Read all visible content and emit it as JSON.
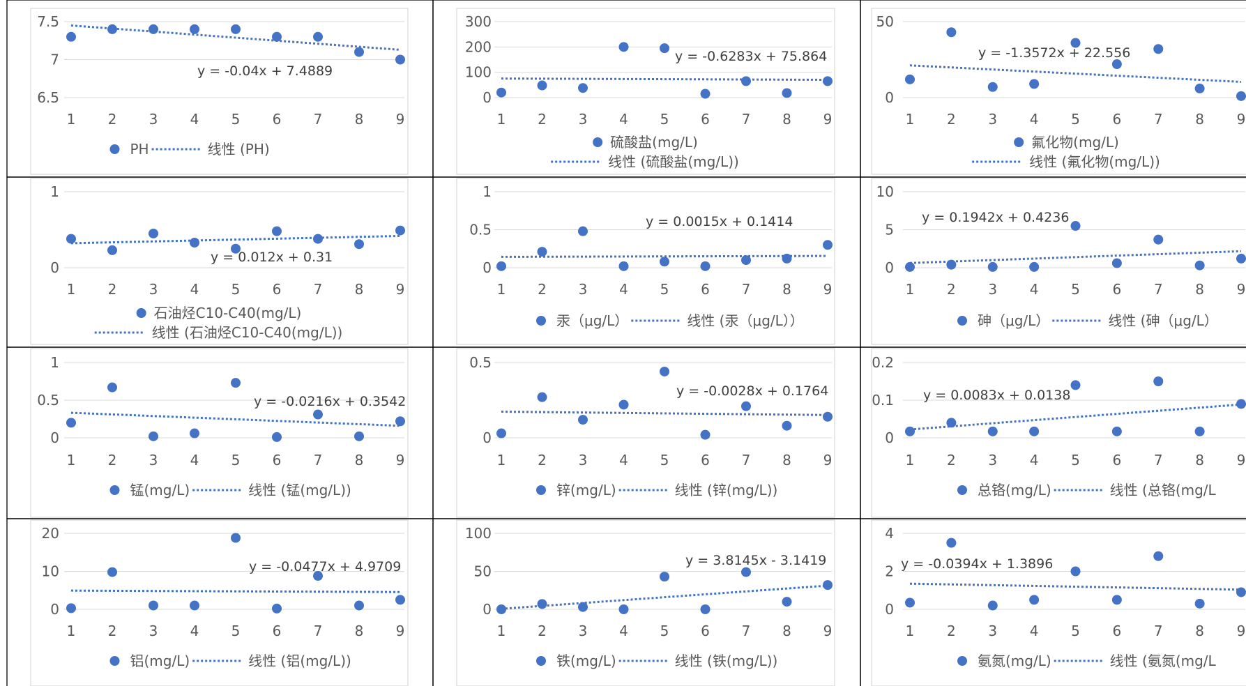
{
  "colors": {
    "series": "#4472C4",
    "grid": "#d9d9d9",
    "axis_text": "#595959",
    "cell_border": "#000000",
    "chart_border": "#d0d0d0"
  },
  "chart_data": [
    {
      "type": "scatter",
      "x": [
        1,
        2,
        3,
        4,
        5,
        6,
        7,
        8,
        9
      ],
      "y": [
        7.3,
        7.4,
        7.4,
        7.4,
        7.4,
        7.3,
        7.3,
        7.1,
        7.0
      ],
      "ylim": [
        6.5,
        7.5
      ],
      "yticks": [
        "6.5",
        "7",
        "7.5"
      ],
      "xticks": [
        "1",
        "2",
        "3",
        "4",
        "5",
        "6",
        "7",
        "8",
        "9"
      ],
      "trendline": {
        "slope": -0.04,
        "intercept": 7.4889,
        "label": "y = -0.04x + 7.4889"
      },
      "legend": {
        "series": "PH",
        "trend": "线性 (PH)",
        "layout": "inline"
      }
    },
    {
      "type": "scatter",
      "x": [
        1,
        2,
        3,
        4,
        5,
        6,
        7,
        8,
        9
      ],
      "y": [
        20,
        48,
        38,
        200,
        195,
        15,
        65,
        18,
        65
      ],
      "ylim": [
        0,
        300
      ],
      "yticks": [
        "0",
        "100",
        "200",
        "300"
      ],
      "xticks": [
        "1",
        "2",
        "3",
        "4",
        "5",
        "6",
        "7",
        "8",
        "9"
      ],
      "trendline": {
        "slope": -0.6283,
        "intercept": 75.864,
        "label": "y = -0.6283x + 75.864"
      },
      "legend": {
        "series": "硫酸盐(mg/L)",
        "trend": "线性 (硫酸盐(mg/L))",
        "layout": "stacked"
      }
    },
    {
      "type": "scatter",
      "x": [
        1,
        2,
        3,
        4,
        5,
        6,
        7,
        8,
        9
      ],
      "y": [
        12,
        43,
        7,
        9,
        36,
        22,
        32,
        6,
        1
      ],
      "ylim": [
        0,
        50
      ],
      "yticks": [
        "0",
        "50"
      ],
      "xticks": [
        "1",
        "2",
        "3",
        "4",
        "5",
        "6",
        "7",
        "8",
        "9"
      ],
      "trendline": {
        "slope": -1.3572,
        "intercept": 22.556,
        "label": "y = -1.3572x + 22.556"
      },
      "legend": {
        "series": "氟化物(mg/L)",
        "trend": "线性 (氟化物(mg/L))",
        "layout": "stacked"
      }
    },
    {
      "type": "scatter",
      "x": [
        1,
        2,
        3,
        4,
        5,
        6,
        7,
        8,
        9
      ],
      "y": [
        0.38,
        0.23,
        0.45,
        0.33,
        0.25,
        0.48,
        0.38,
        0.31,
        0.49
      ],
      "ylim": [
        0,
        1
      ],
      "yticks": [
        "0",
        "1"
      ],
      "xticks": [
        "1",
        "2",
        "3",
        "4",
        "5",
        "6",
        "7",
        "8",
        "9"
      ],
      "trendline": {
        "slope": 0.012,
        "intercept": 0.31,
        "label": "y = 0.012x + 0.31"
      },
      "legend": {
        "series": "石油烃C10-C40(mg/L)",
        "trend": "线性 (石油烃C10-C40(mg/L))",
        "layout": "stacked"
      }
    },
    {
      "type": "scatter",
      "x": [
        1,
        2,
        3,
        4,
        5,
        6,
        7,
        8,
        9
      ],
      "y": [
        0.02,
        0.21,
        0.48,
        0.02,
        0.08,
        0.02,
        0.1,
        0.12,
        0.3
      ],
      "ylim": [
        0,
        1
      ],
      "yticks": [
        "0",
        "0.5",
        "1"
      ],
      "xticks": [
        "1",
        "2",
        "3",
        "4",
        "5",
        "6",
        "7",
        "8",
        "9"
      ],
      "trendline": {
        "slope": 0.0015,
        "intercept": 0.1414,
        "label": "y = 0.0015x + 0.1414"
      },
      "legend": {
        "series": "汞（μg/L）",
        "trend": "线性 (汞（μg/L））",
        "layout": "inline"
      }
    },
    {
      "type": "scatter",
      "x": [
        1,
        2,
        3,
        4,
        5,
        6,
        7,
        8,
        9
      ],
      "y": [
        0.1,
        0.4,
        0.1,
        0.1,
        5.5,
        0.6,
        3.7,
        0.3,
        1.2
      ],
      "ylim": [
        0,
        10
      ],
      "yticks": [
        "0",
        "5",
        "10"
      ],
      "xticks": [
        "1",
        "2",
        "3",
        "4",
        "5",
        "6",
        "7",
        "8",
        "9"
      ],
      "trendline": {
        "slope": 0.1942,
        "intercept": 0.4236,
        "label": "y = 0.1942x + 0.4236"
      },
      "legend": {
        "series": "砷（μg/L）",
        "trend": "线性 (砷（μg/L）",
        "layout": "inline"
      }
    },
    {
      "type": "scatter",
      "x": [
        1,
        2,
        3,
        4,
        5,
        6,
        7,
        8,
        9
      ],
      "y": [
        0.2,
        0.67,
        0.02,
        0.06,
        0.73,
        0.01,
        0.31,
        0.02,
        0.22
      ],
      "ylim": [
        0,
        1
      ],
      "yticks": [
        "0",
        "0.5",
        "1"
      ],
      "xticks": [
        "1",
        "2",
        "3",
        "4",
        "5",
        "6",
        "7",
        "8",
        "9"
      ],
      "trendline": {
        "slope": -0.0216,
        "intercept": 0.3542,
        "label": "y = -0.0216x + 0.3542"
      },
      "legend": {
        "series": "锰(mg/L)",
        "trend": "线性 (锰(mg/L))",
        "layout": "inline"
      }
    },
    {
      "type": "scatter",
      "x": [
        1,
        2,
        3,
        4,
        5,
        6,
        7,
        8,
        9
      ],
      "y": [
        0.03,
        0.27,
        0.12,
        0.22,
        0.44,
        0.02,
        0.21,
        0.08,
        0.14
      ],
      "ylim": [
        0,
        0.5
      ],
      "yticks": [
        "0",
        "0.5"
      ],
      "xticks": [
        "1",
        "2",
        "3",
        "4",
        "5",
        "6",
        "7",
        "8",
        "9"
      ],
      "trendline": {
        "slope": -0.0028,
        "intercept": 0.1764,
        "label": "y = -0.0028x + 0.1764"
      },
      "legend": {
        "series": "锌(mg/L)",
        "trend": "线性 (锌(mg/L))",
        "layout": "inline"
      }
    },
    {
      "type": "scatter",
      "x": [
        1,
        2,
        3,
        4,
        5,
        6,
        7,
        8,
        9
      ],
      "y": [
        0.017,
        0.04,
        0.017,
        0.017,
        0.14,
        0.017,
        0.15,
        0.017,
        0.09
      ],
      "ylim": [
        0,
        0.2
      ],
      "yticks": [
        "0",
        "0.1",
        "0.2"
      ],
      "xticks": [
        "1",
        "2",
        "3",
        "4",
        "5",
        "6",
        "7",
        "8",
        "9"
      ],
      "trendline": {
        "slope": 0.0083,
        "intercept": 0.0138,
        "label": "y = 0.0083x + 0.0138"
      },
      "legend": {
        "series": "总铬(mg/L)",
        "trend": "线性 (总铬(mg/L",
        "layout": "inline"
      }
    },
    {
      "type": "scatter",
      "x": [
        1,
        2,
        3,
        4,
        5,
        6,
        7,
        8,
        9
      ],
      "y": [
        0.3,
        9.8,
        1.0,
        1.0,
        18.8,
        0.2,
        8.8,
        1.0,
        2.5
      ],
      "ylim": [
        0,
        20
      ],
      "yticks": [
        "0",
        "10",
        "20"
      ],
      "xticks": [
        "1",
        "2",
        "3",
        "4",
        "5",
        "6",
        "7",
        "8",
        "9"
      ],
      "trendline": {
        "slope": -0.0477,
        "intercept": 4.9709,
        "label": "y = -0.0477x + 4.9709"
      },
      "legend": {
        "series": "铝(mg/L)",
        "trend": "线性 (铝(mg/L))",
        "layout": "inline"
      }
    },
    {
      "type": "scatter",
      "x": [
        1,
        2,
        3,
        4,
        5,
        6,
        7,
        8,
        9
      ],
      "y": [
        0,
        7,
        3,
        0,
        43,
        0,
        49,
        10,
        32
      ],
      "ylim": [
        0,
        100
      ],
      "yticks": [
        "0",
        "50",
        "100"
      ],
      "xticks": [
        "1",
        "2",
        "3",
        "4",
        "5",
        "6",
        "7",
        "8",
        "9"
      ],
      "trendline": {
        "slope": 3.8145,
        "intercept": -3.1419,
        "label": "y = 3.8145x - 3.1419"
      },
      "legend": {
        "series": "铁(mg/L)",
        "trend": "线性 (铁(mg/L))",
        "layout": "inline"
      }
    },
    {
      "type": "scatter",
      "x": [
        1,
        2,
        3,
        4,
        5,
        6,
        7,
        8,
        9
      ],
      "y": [
        0.35,
        3.5,
        0.2,
        0.5,
        2.0,
        0.5,
        2.8,
        0.3,
        0.9
      ],
      "ylim": [
        0,
        4
      ],
      "yticks": [
        "0",
        "2",
        "4"
      ],
      "xticks": [
        "1",
        "2",
        "3",
        "4",
        "5",
        "6",
        "7",
        "8",
        "9"
      ],
      "trendline": {
        "slope": -0.0394,
        "intercept": 1.3896,
        "label": "y = -0.0394x + 1.3896"
      },
      "legend": {
        "series": "氨氮(mg/L)",
        "trend": "线性 (氨氮(mg/L",
        "layout": "inline"
      }
    }
  ]
}
